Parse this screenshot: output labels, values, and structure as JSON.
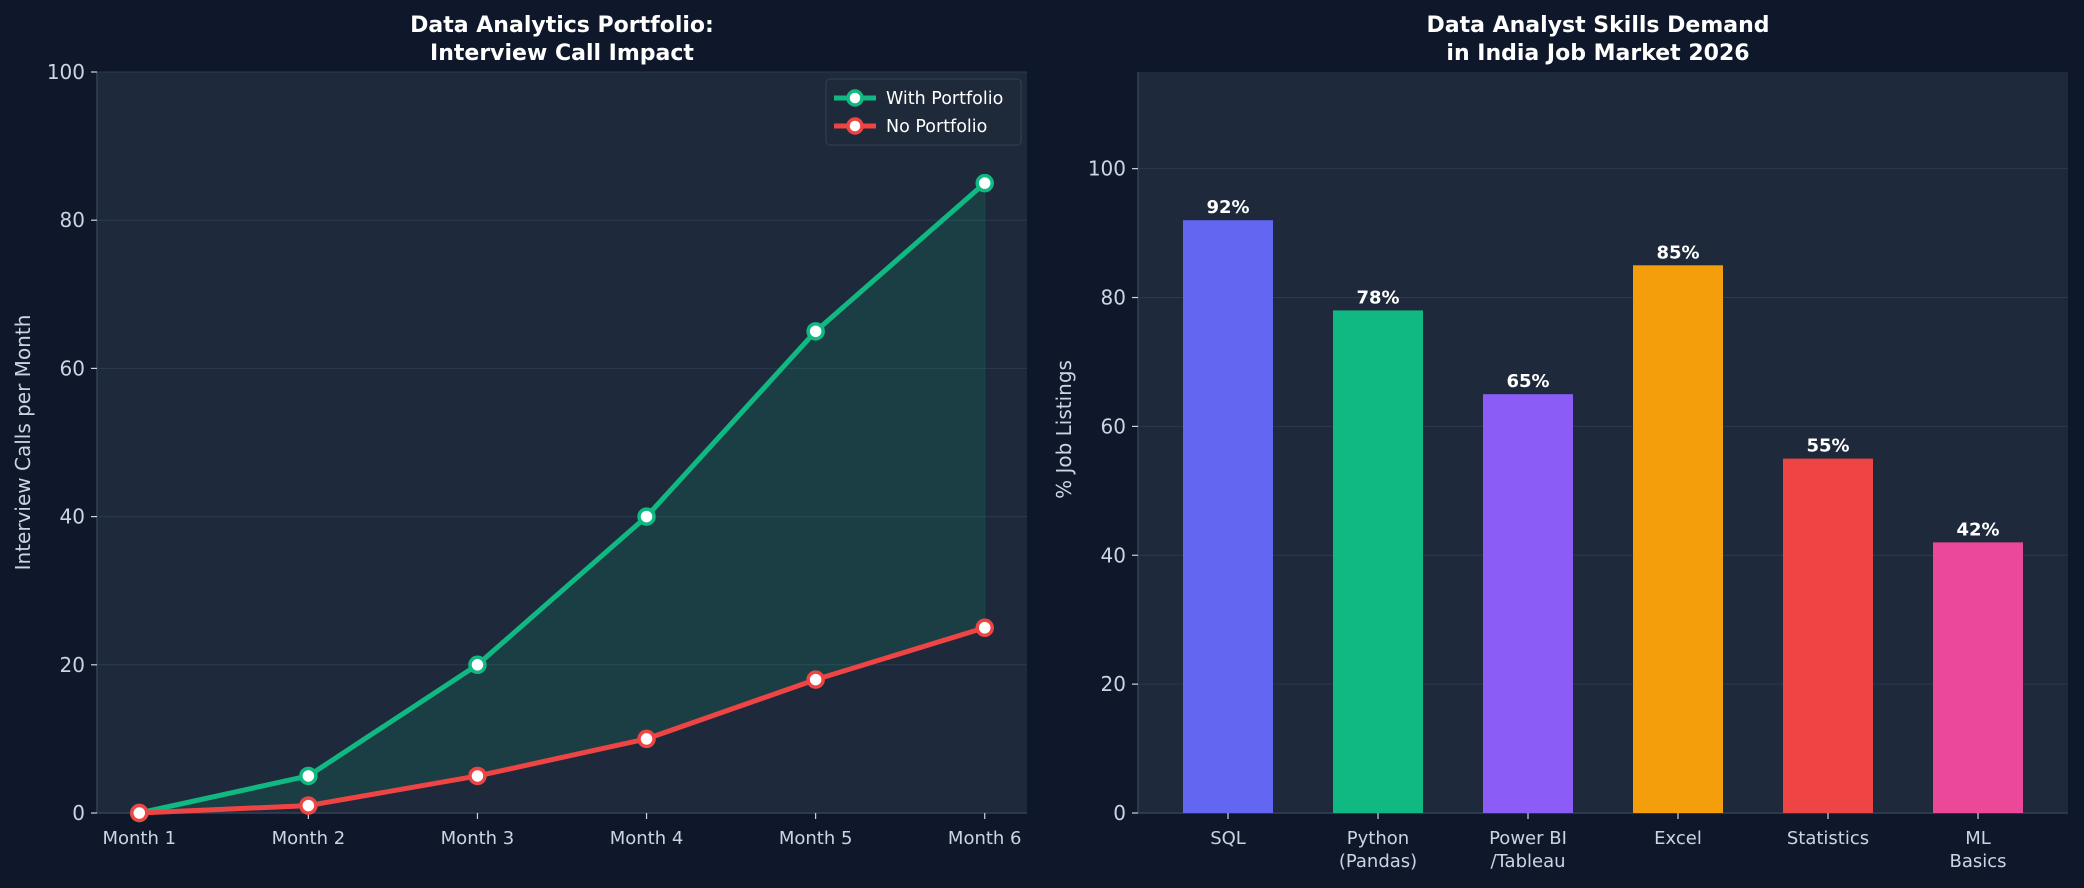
{
  "theme": {
    "figure_bg": "#0f172a",
    "axes_bg": "#1e293b",
    "grid": "#2b3a4f",
    "spine": "#334155",
    "text": "#cbd5e1",
    "title": "#ffffff",
    "label_text": "#ffffff"
  },
  "chart_data": [
    {
      "type": "line",
      "title_lines": [
        "Data Analytics Portfolio:",
        "Interview Call Impact"
      ],
      "xlabel": "",
      "ylabel": "Interview Calls per Month",
      "categories": [
        "Month 1",
        "Month 2",
        "Month 3",
        "Month 4",
        "Month 5",
        "Month 6"
      ],
      "ylim": [
        0,
        100
      ],
      "yticks": [
        0,
        20,
        40,
        60,
        80,
        100
      ],
      "grid": true,
      "legend_position": "top-right",
      "fill_between": true,
      "series": [
        {
          "name": "With Portfolio",
          "values": [
            0,
            5,
            20,
            40,
            65,
            85
          ],
          "color": "#10b981"
        },
        {
          "name": "No Portfolio",
          "values": [
            0,
            1,
            5,
            10,
            18,
            25
          ],
          "color": "#ef4444"
        }
      ]
    },
    {
      "type": "bar",
      "title_lines": [
        "Data Analyst Skills Demand",
        "in India Job Market 2026"
      ],
      "xlabel": "",
      "ylabel": "% Job Listings",
      "categories": [
        [
          "SQL"
        ],
        [
          "Python",
          "(Pandas)"
        ],
        [
          "Power BI",
          "/Tableau"
        ],
        [
          "Excel"
        ],
        [
          "Statistics"
        ],
        [
          "ML",
          "Basics"
        ]
      ],
      "values": [
        92,
        78,
        65,
        85,
        55,
        42
      ],
      "value_labels": [
        "92%",
        "78%",
        "65%",
        "85%",
        "55%",
        "42%"
      ],
      "colors": [
        "#6366f1",
        "#10b981",
        "#8b5cf6",
        "#f59e0b",
        "#ef4444",
        "#ec4899"
      ],
      "ylim": [
        0,
        115
      ],
      "yticks": [
        0,
        20,
        40,
        60,
        80,
        100
      ],
      "grid": true
    }
  ]
}
